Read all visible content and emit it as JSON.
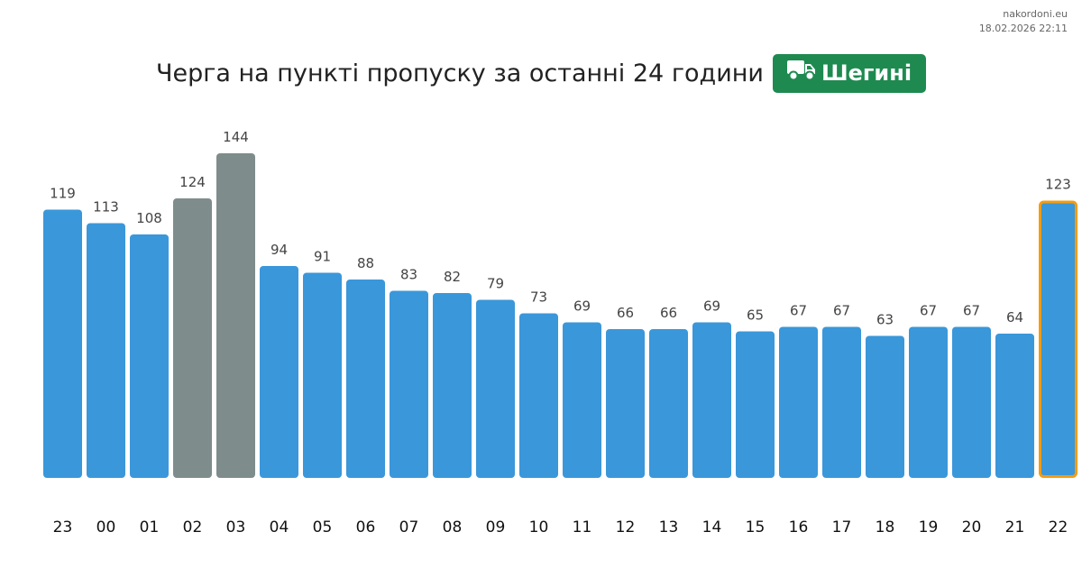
{
  "site": {
    "name": "nakordoni.eu",
    "timestamp": "18.02.2026 22:11"
  },
  "header": {
    "title": "Черга на пункті пропуску за останні 24 години",
    "checkpoint": "Шегині",
    "checkpoint_icon": "truck-icon"
  },
  "colors": {
    "bar": "#3a97da",
    "bar_gray": "#7f8c8c",
    "highlight_border": "#f39c12",
    "badge": "#1e8a50"
  },
  "chart_data": {
    "type": "bar",
    "categories": [
      "23",
      "00",
      "01",
      "02",
      "03",
      "04",
      "05",
      "06",
      "07",
      "08",
      "09",
      "10",
      "11",
      "12",
      "13",
      "14",
      "15",
      "16",
      "17",
      "18",
      "19",
      "20",
      "21",
      "22"
    ],
    "values": [
      119,
      113,
      108,
      124,
      144,
      94,
      91,
      88,
      83,
      82,
      79,
      73,
      69,
      66,
      66,
      69,
      65,
      67,
      67,
      63,
      67,
      67,
      64,
      123
    ],
    "gray_categories": [
      "02",
      "03"
    ],
    "highlighted_category": "22",
    "ylim": [
      0,
      144
    ]
  }
}
